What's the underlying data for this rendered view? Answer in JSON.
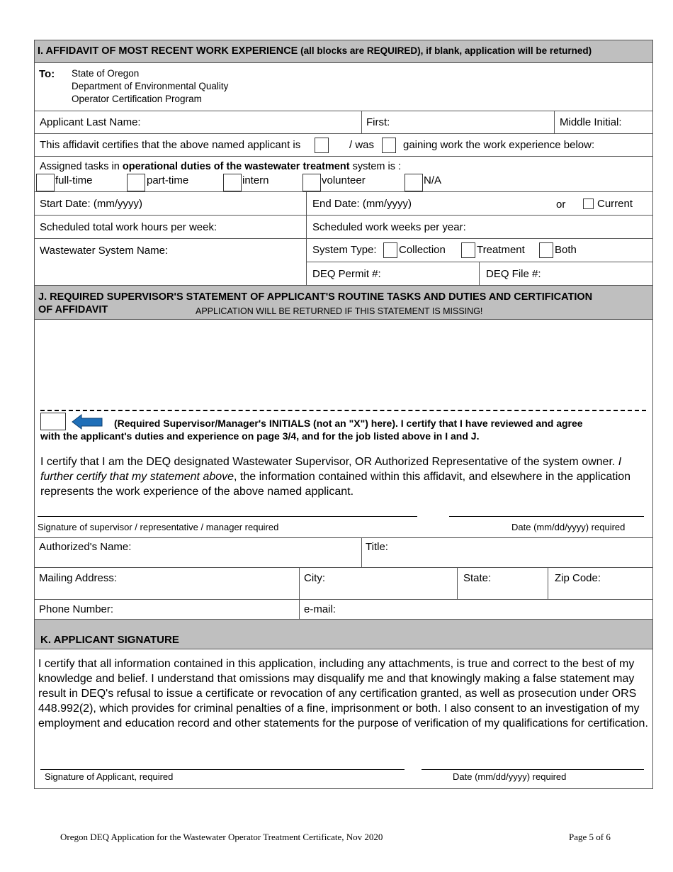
{
  "section_i": {
    "title_bold": "I. AFFIDAVIT OF MOST RECENT WORK EXPERIENCE",
    "title_rest": " (all blocks are REQUIRED), if blank, application will be returned)",
    "to_label": "To:",
    "to_lines": [
      "State of Oregon",
      "Department of Environmental Quality",
      "Operator Certification Program"
    ],
    "last_name": "Applicant Last Name:",
    "first": "First:",
    "middle": "Middle  Initial:",
    "certifies_text": "This affidavit certifies that the above named applicant is",
    "was": "/ was",
    "gaining": "gaining work the work experience below:",
    "assigned_pre": "Assigned tasks in ",
    "assigned_bold": "operational duties of the wastewater treatment",
    "assigned_post": " system is :",
    "duty_options": [
      "full-time",
      "part-time",
      "intern",
      "volunteer",
      "N/A"
    ],
    "start_date": "Start Date: (mm/yyyy)",
    "end_date": "End Date: (mm/yyyy)",
    "or": "or",
    "current": "Current",
    "hours": "Scheduled total work hours per week:",
    "weeks": "Scheduled work weeks per year:",
    "system_name": "Wastewater System Name:",
    "system_type": "System Type:",
    "system_options": [
      "Collection",
      "Treatment",
      "Both"
    ],
    "permit": "DEQ Permit #:",
    "file": "DEQ File #:"
  },
  "section_j": {
    "title_line1": "J. REQUIRED SUPERVISOR'S STATEMENT OF APPLICANT'S ROUTINE TASKS AND DUTIES AND CERTIFICATION",
    "title_line2": "OF AFFIDAVIT",
    "warning": "APPLICATION WILL BE RETURNED IF THIS STATEMENT IS MISSING!",
    "initials_line1": "(Required Supervisor/Manager's INITIALS (not an \"X\") here).  I certify that I have reviewed and agree",
    "initials_line2": "with the applicant's duties and experience on page 3/4, and for the job listed above in I and J.",
    "certify_1": "I certify that I am the DEQ designated Wastewater Supervisor, OR Authorized Representative of the system owner.  ",
    "certify_italic": "I further certify that my statement above",
    "certify_2": ", the information contained within this affidavit, and elsewhere in the application represents the work experience of the above named applicant.",
    "sig_label": "Signature of supervisor / representative / manager required",
    "date_label": "Date  (mm/dd/yyyy) required",
    "authorized_name": "Authorized's Name:",
    "title": "Title:",
    "mailing": "Mailing Address:",
    "city": "City:",
    "state": "State:",
    "zip": "Zip Code:",
    "phone": "Phone Number:",
    "email": "e-mail:"
  },
  "section_k": {
    "title": "K. APPLICANT SIGNATURE",
    "body": "I certify that all information contained in this application, including any attachments, is true and correct to the best of my knowledge and belief.  I understand that omissions may disqualify me and that knowingly making a false statement may result in DEQ's refusal to issue a certificate or revocation of any certification granted, as well as prosecution under ORS 448.992(2), which provides for criminal penalties of a fine, imprisonment or both.  I also consent to an investigation of my employment and education record and other statements for the purpose of verification of my qualifications for certification.",
    "sig_label": "Signature of Applicant, required",
    "date_label": "Date   (mm/dd/yyyy)  required"
  },
  "footer": {
    "left": "Oregon DEQ Application for the Wastewater Operator Treatment Certificate, Nov 2020",
    "right": "Page 5 of 6"
  },
  "colors": {
    "header_gray": "#bfbfbf",
    "arrow_blue": "#1f6fb8"
  }
}
